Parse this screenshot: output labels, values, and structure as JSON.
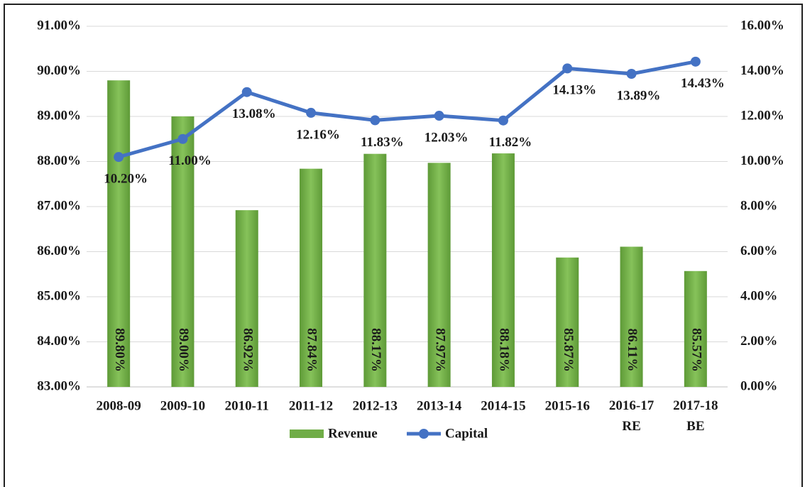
{
  "chart_data": {
    "type": "bar_line",
    "categories": [
      "2008-09",
      "2009-10",
      "2010-11",
      "2011-12",
      "2012-13",
      "2013-14",
      "2014-15",
      "2015-16",
      "2016-17 RE",
      "2017-18 BE"
    ],
    "series": [
      {
        "name": "Revenue",
        "type": "bar",
        "color": "#70ad47",
        "axis": "y",
        "values": [
          89.8,
          89.0,
          86.92,
          87.84,
          88.17,
          87.97,
          88.18,
          85.87,
          86.11,
          85.57
        ],
        "value_labels": [
          "89.80%",
          "89.00%",
          "86.92%",
          "87.84%",
          "88.17%",
          "87.97%",
          "88.18%",
          "85.87%",
          "86.11%",
          "85.57%"
        ]
      },
      {
        "name": "Capital",
        "type": "line",
        "color": "#4472c4",
        "axis": "y2",
        "values": [
          10.2,
          11.0,
          13.08,
          12.16,
          11.83,
          12.03,
          11.82,
          14.13,
          13.89,
          14.43
        ],
        "value_labels": [
          "10.20%",
          "11.00%",
          "13.08%",
          "12.16%",
          "11.83%",
          "12.03%",
          "11.82%",
          "14.13%",
          "13.89%",
          "14.43%"
        ]
      }
    ],
    "ylim": [
      83,
      91
    ],
    "yticks": [
      {
        "value": 83,
        "label": "83.00%"
      },
      {
        "value": 84,
        "label": "84.00%"
      },
      {
        "value": 85,
        "label": "85.00%"
      },
      {
        "value": 86,
        "label": "86.00%"
      },
      {
        "value": 87,
        "label": "87.00%"
      },
      {
        "value": 88,
        "label": "88.00%"
      },
      {
        "value": 89,
        "label": "89.00%"
      },
      {
        "value": 90,
        "label": "90.00%"
      },
      {
        "value": 91,
        "label": "91.00%"
      }
    ],
    "y2lim": [
      0,
      16
    ],
    "y2ticks": [
      {
        "value": 0,
        "label": "0.00%"
      },
      {
        "value": 2,
        "label": "2.00%"
      },
      {
        "value": 4,
        "label": "4.00%"
      },
      {
        "value": 6,
        "label": "6.00%"
      },
      {
        "value": 8,
        "label": "8.00%"
      },
      {
        "value": 10,
        "label": "10.00%"
      },
      {
        "value": 12,
        "label": "12.00%"
      },
      {
        "value": 14,
        "label": "14.00%"
      },
      {
        "value": 16,
        "label": "16.00%"
      }
    ],
    "grid": true,
    "legend": "bottom"
  }
}
